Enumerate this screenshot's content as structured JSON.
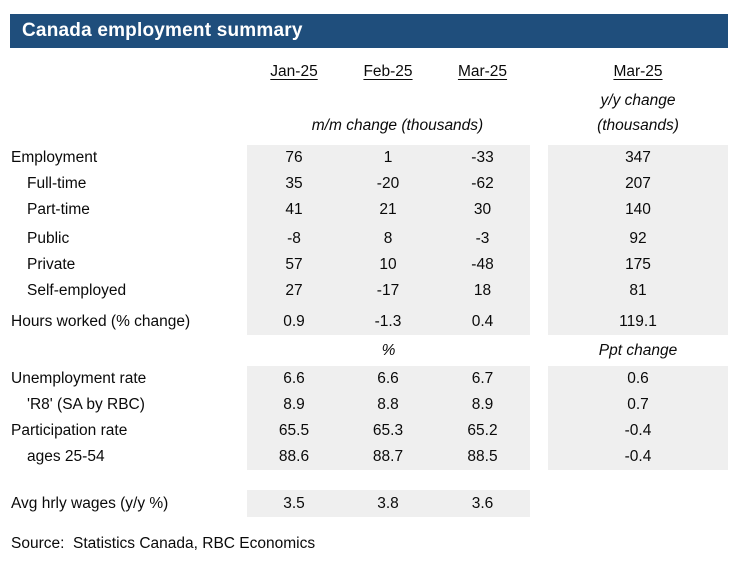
{
  "title": "Canada employment summary",
  "colors": {
    "header_bg": "#1F4E7C",
    "header_text": "#FFFFFF",
    "column_shade": "#EFEFEF",
    "body_text": "#0A0A0A"
  },
  "header": {
    "months": [
      "Jan-25",
      "Feb-25",
      "Mar-25"
    ],
    "yoy_month": "Mar-25",
    "yoy_unit_line1": "y/y change",
    "yoy_unit_line2": "(thousands)",
    "mm_unit": "m/m change (thousands)"
  },
  "section2_units": {
    "mm": "%",
    "yoy": "Ppt change"
  },
  "rows": {
    "employment": {
      "label": "Employment",
      "jan": "76",
      "feb": "1",
      "mar": "-33",
      "yoy": "347"
    },
    "full_time": {
      "label": "Full-time",
      "jan": "35",
      "feb": "-20",
      "mar": "-62",
      "yoy": "207"
    },
    "part_time": {
      "label": "Part-time",
      "jan": "41",
      "feb": "21",
      "mar": "30",
      "yoy": "140"
    },
    "public": {
      "label": "Public",
      "jan": "-8",
      "feb": "8",
      "mar": "-3",
      "yoy": "92"
    },
    "private": {
      "label": "Private",
      "jan": "57",
      "feb": "10",
      "mar": "-48",
      "yoy": "175"
    },
    "self_employed": {
      "label": "Self-employed",
      "jan": "27",
      "feb": "-17",
      "mar": "18",
      "yoy": "81"
    },
    "hours_worked": {
      "label": "Hours worked (% change)",
      "jan": "0.9",
      "feb": "-1.3",
      "mar": "0.4",
      "yoy": "119.1"
    },
    "unemployment_rate": {
      "label": "Unemployment rate",
      "jan": "6.6",
      "feb": "6.6",
      "mar": "6.7",
      "yoy": "0.6"
    },
    "r8": {
      "label": "'R8' (SA by RBC)",
      "jan": "8.9",
      "feb": "8.8",
      "mar": "8.9",
      "yoy": "0.7"
    },
    "participation_rate": {
      "label": "Participation rate",
      "jan": "65.5",
      "feb": "65.3",
      "mar": "65.2",
      "yoy": "-0.4"
    },
    "ages_25_54": {
      "label": "ages 25-54",
      "jan": "88.6",
      "feb": "88.7",
      "mar": "88.5",
      "yoy": "-0.4"
    },
    "avg_hrly_wages": {
      "label": "Avg hrly wages (y/y %)",
      "jan": "3.5",
      "feb": "3.8",
      "mar": "3.6",
      "yoy": ""
    }
  },
  "source": "Source:  Statistics Canada, RBC Economics",
  "chart_data": {
    "type": "table",
    "title": "Canada employment summary",
    "columns": [
      "Jan-25",
      "Feb-25",
      "Mar-25",
      "Mar-25 (y/y change, thousands)"
    ],
    "sections": [
      {
        "units": {
          "mm_columns": "m/m change (thousands)",
          "yoy_column": "y/y change (thousands)"
        },
        "rows": [
          {
            "label": "Employment",
            "values": [
              76,
              1,
              -33
            ],
            "yoy": 347
          },
          {
            "label": "Full-time",
            "values": [
              35,
              -20,
              -62
            ],
            "yoy": 207
          },
          {
            "label": "Part-time",
            "values": [
              41,
              21,
              30
            ],
            "yoy": 140
          },
          {
            "label": "Public",
            "values": [
              -8,
              8,
              -3
            ],
            "yoy": 92
          },
          {
            "label": "Private",
            "values": [
              57,
              10,
              -48
            ],
            "yoy": 175
          },
          {
            "label": "Self-employed",
            "values": [
              27,
              -17,
              18
            ],
            "yoy": 81
          },
          {
            "label": "Hours worked (% change)",
            "values": [
              0.9,
              -1.3,
              0.4
            ],
            "yoy": 119.1
          }
        ]
      },
      {
        "units": {
          "mm_columns": "%",
          "yoy_column": "Ppt change"
        },
        "rows": [
          {
            "label": "Unemployment rate",
            "values": [
              6.6,
              6.6,
              6.7
            ],
            "yoy": 0.6
          },
          {
            "label": "'R8' (SA by RBC)",
            "values": [
              8.9,
              8.8,
              8.9
            ],
            "yoy": 0.7
          },
          {
            "label": "Participation rate",
            "values": [
              65.5,
              65.3,
              65.2
            ],
            "yoy": -0.4
          },
          {
            "label": "ages 25-54",
            "values": [
              88.6,
              88.7,
              88.5
            ],
            "yoy": -0.4
          }
        ]
      },
      {
        "units": {
          "mm_columns": null,
          "yoy_column": null
        },
        "rows": [
          {
            "label": "Avg hrly wages (y/y %)",
            "values": [
              3.5,
              3.8,
              3.6
            ],
            "yoy": null
          }
        ]
      }
    ],
    "source": "Source: Statistics Canada, RBC Economics"
  }
}
